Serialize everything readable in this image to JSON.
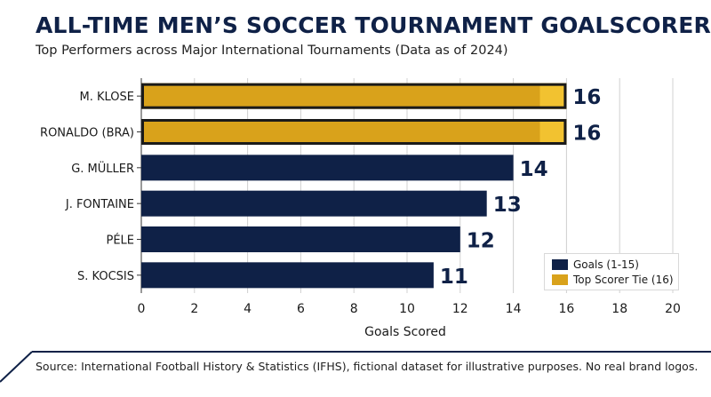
{
  "title": "ALL-TIME MEN’S SOCCER TOURNAMENT GOALSCORERS",
  "subtitle": "Top Performers across Major International Tournaments (Data as of 2024)",
  "source": "Source: International Football History & Statistics (IFHS), fictional dataset for illustrative purposes. No real brand logos.",
  "colors": {
    "navy": "#0f2147",
    "gold": "#d9a21b",
    "gold_light": "#f2c230"
  },
  "legend": [
    {
      "label": "Goals (1-15)",
      "color": "#0f2147"
    },
    {
      "label": "Top Scorer Tie (16)",
      "color": "#d9a21b"
    }
  ],
  "chart_data": {
    "type": "bar",
    "orientation": "horizontal",
    "categories": [
      "M. KLOSE",
      "RONALDO (BRA)",
      "G. MÜLLER",
      "J. FONTAINE",
      "PÉLE",
      "S. KOCSIS"
    ],
    "values": [
      16,
      16,
      14,
      13,
      12,
      11
    ],
    "highlight": [
      true,
      true,
      false,
      false,
      false,
      false
    ],
    "xlabel": "Goals Scored",
    "ylabel": "",
    "xlim": [
      0,
      20
    ],
    "xticks": [
      0,
      2,
      4,
      6,
      8,
      10,
      12,
      14,
      16,
      18,
      20
    ],
    "grid": true,
    "legend_position": "bottom-right"
  }
}
